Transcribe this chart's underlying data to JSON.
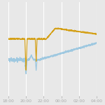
{
  "x_ticks_labels": [
    "18:00",
    "20:00",
    "22:00",
    "00:00",
    "02:00",
    "04:00"
  ],
  "x_ticks_pos": [
    0,
    2,
    4,
    6,
    8,
    10
  ],
  "background_color": "#e8e8e8",
  "grid_color": "#ffffff",
  "line_orange_color": "#d4a017",
  "line_blue_color": "#9ec8e0",
  "figsize": [
    1.5,
    1.5
  ],
  "dpi": 100
}
